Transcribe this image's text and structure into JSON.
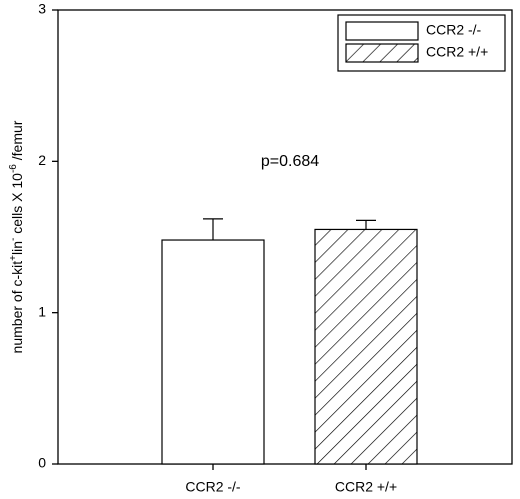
{
  "chart_data": {
    "type": "bar",
    "ylabel": [
      "number of c-kit",
      "+",
      "lin",
      "-",
      " cells X 10",
      "-6",
      " /femur"
    ],
    "ylabel_superscript": [
      false,
      true,
      false,
      true,
      false,
      true,
      false
    ],
    "annotation": "p=0.684",
    "categories": [
      "CCR2 -/-",
      "CCR2 +/+"
    ],
    "values": [
      1.48,
      1.55
    ],
    "errors": [
      0.14,
      0.06
    ],
    "hatch": [
      false,
      true
    ],
    "color": "#ffffff",
    "ylim": [
      0,
      3
    ],
    "yticks": [
      0,
      1,
      2,
      3
    ],
    "legend": "upper right",
    "grid": false
  }
}
